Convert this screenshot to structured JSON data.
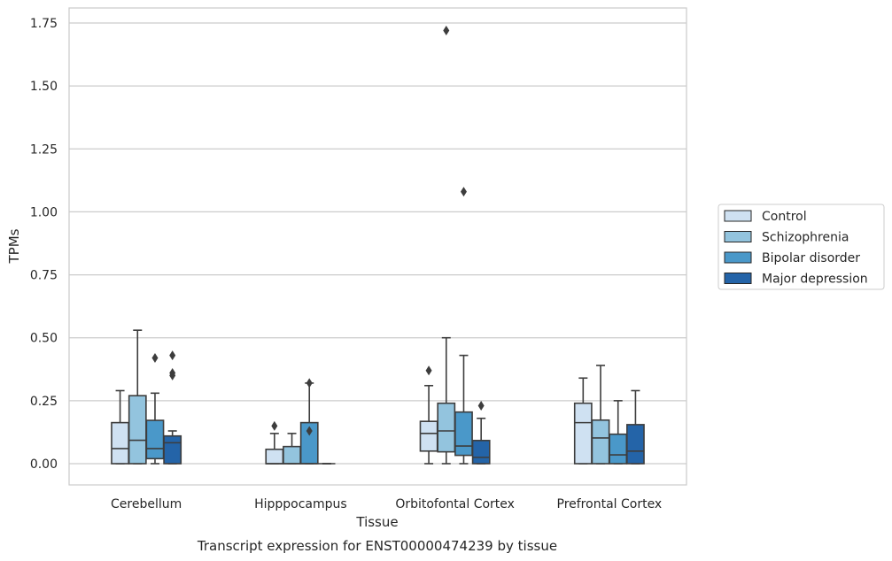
{
  "chart_data": {
    "type": "box",
    "title": "",
    "caption": "Transcript expression for ENST00000474239 by tissue",
    "xlabel": "Tissue",
    "ylabel": "TPMs",
    "ylim": [
      -0.085,
      1.81
    ],
    "yticks": [
      0.0,
      0.25,
      0.5,
      0.75,
      1.0,
      1.25,
      1.5,
      1.75
    ],
    "ytick_labels": [
      "0.00",
      "0.25",
      "0.50",
      "0.75",
      "1.00",
      "1.25",
      "1.50",
      "1.75"
    ],
    "grid": true,
    "legend_position": "right",
    "categories": [
      "Cerebellum",
      "Hipppocampus",
      "Orbitofontal Cortex",
      "Prefrontal Cortex"
    ],
    "series": [
      {
        "name": "Control",
        "color": "#cfe1f2",
        "boxes": [
          {
            "whislo": 0.0,
            "q1": 0.0,
            "med": 0.06,
            "q3": 0.163,
            "whishi": 0.29,
            "fliers": []
          },
          {
            "whislo": 0.0,
            "q1": 0.0,
            "med": 0.0,
            "q3": 0.057,
            "whishi": 0.12,
            "fliers": [
              0.15
            ]
          },
          {
            "whislo": 0.0,
            "q1": 0.05,
            "med": 0.12,
            "q3": 0.168,
            "whishi": 0.31,
            "fliers": [
              0.37
            ]
          },
          {
            "whislo": 0.0,
            "q1": 0.0,
            "med": 0.163,
            "q3": 0.24,
            "whishi": 0.34,
            "fliers": []
          }
        ]
      },
      {
        "name": "Schizophrenia",
        "color": "#93c4de",
        "boxes": [
          {
            "whislo": 0.0,
            "q1": 0.0,
            "med": 0.093,
            "q3": 0.27,
            "whishi": 0.53,
            "fliers": []
          },
          {
            "whislo": 0.0,
            "q1": 0.0,
            "med": 0.0,
            "q3": 0.068,
            "whishi": 0.12,
            "fliers": []
          },
          {
            "whislo": 0.0,
            "q1": 0.047,
            "med": 0.13,
            "q3": 0.24,
            "whishi": 0.5,
            "fliers": [
              1.72
            ]
          },
          {
            "whislo": 0.0,
            "q1": 0.0,
            "med": 0.102,
            "q3": 0.173,
            "whishi": 0.39,
            "fliers": []
          }
        ]
      },
      {
        "name": "Bipolar disorder",
        "color": "#4a98c9",
        "boxes": [
          {
            "whislo": 0.0,
            "q1": 0.02,
            "med": 0.06,
            "q3": 0.172,
            "whishi": 0.28,
            "fliers": [
              0.42
            ]
          },
          {
            "whislo": 0.0,
            "q1": 0.0,
            "med": 0.0,
            "q3": 0.163,
            "whishi": 0.32,
            "fliers": [
              0.32,
              0.13
            ]
          },
          {
            "whislo": 0.0,
            "q1": 0.033,
            "med": 0.07,
            "q3": 0.205,
            "whishi": 0.43,
            "fliers": [
              1.08
            ]
          },
          {
            "whislo": 0.0,
            "q1": 0.0,
            "med": 0.035,
            "q3": 0.117,
            "whishi": 0.25,
            "fliers": []
          }
        ]
      },
      {
        "name": "Major depression",
        "color": "#2464a8",
        "boxes": [
          {
            "whislo": 0.0,
            "q1": 0.0,
            "med": 0.083,
            "q3": 0.11,
            "whishi": 0.13,
            "fliers": [
              0.43,
              0.36,
              0.35
            ]
          },
          {
            "whislo": 0.0,
            "q1": 0.0,
            "med": 0.0,
            "q3": 0.0,
            "whishi": 0.0,
            "fliers": []
          },
          {
            "whislo": 0.0,
            "q1": 0.0,
            "med": 0.025,
            "q3": 0.092,
            "whishi": 0.18,
            "fliers": [
              0.23
            ]
          },
          {
            "whislo": 0.0,
            "q1": 0.0,
            "med": 0.05,
            "q3": 0.155,
            "whishi": 0.29,
            "fliers": []
          }
        ]
      }
    ]
  }
}
